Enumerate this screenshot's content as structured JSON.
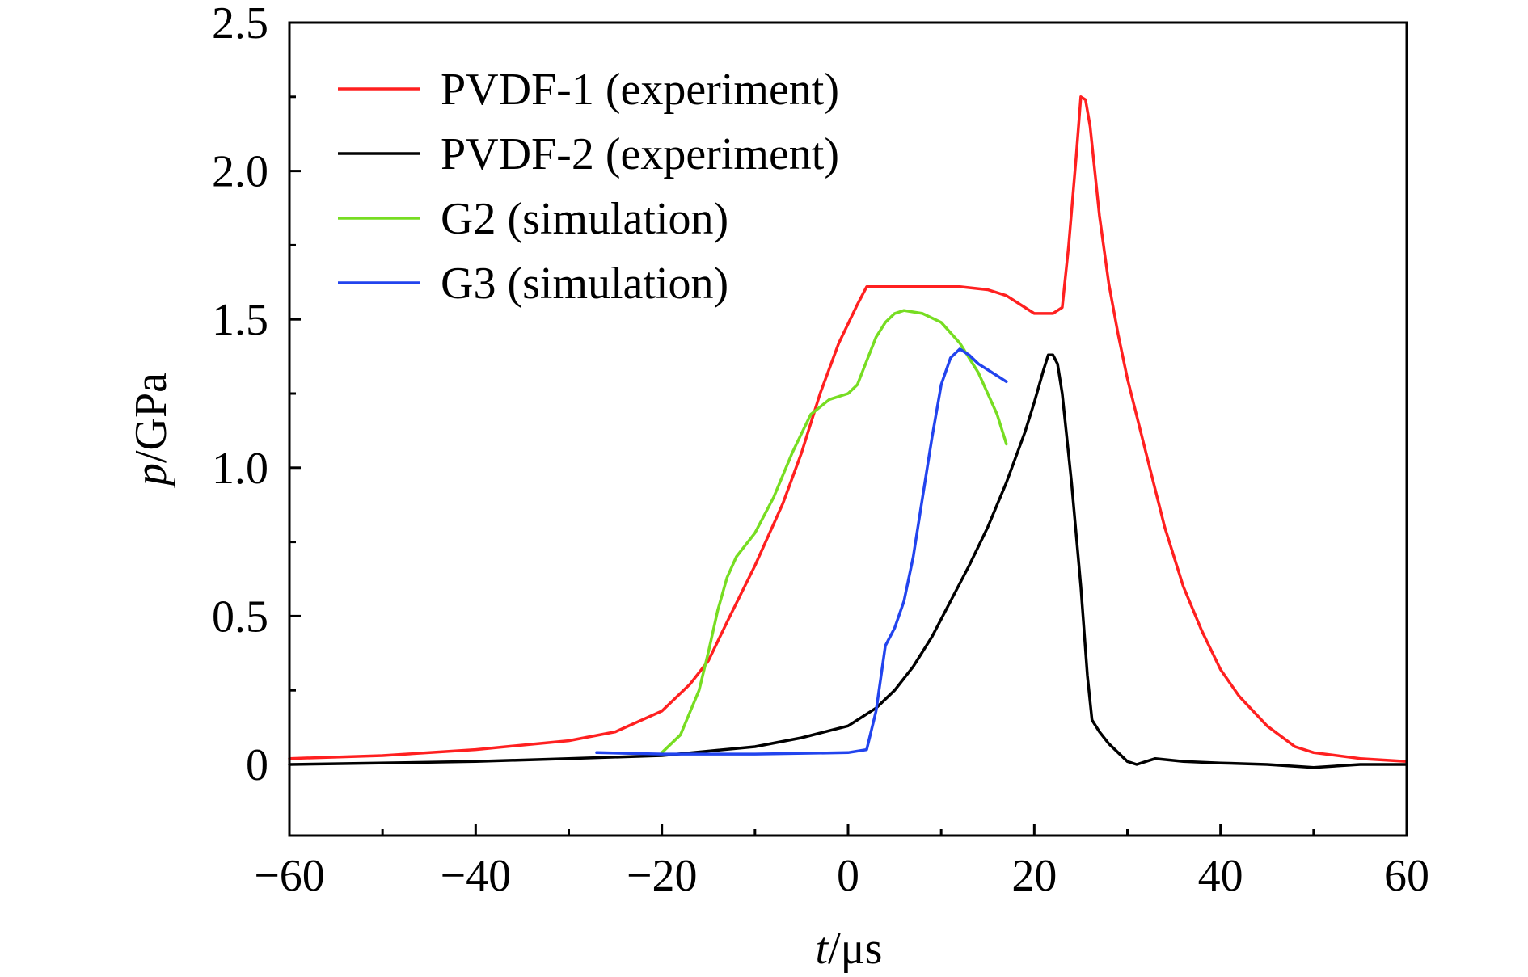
{
  "chart_data": {
    "type": "line",
    "title": "",
    "xlabel": {
      "var": "t",
      "unit": "/μs"
    },
    "ylabel": {
      "var": "p",
      "unit": "/GPa"
    },
    "xlim": [
      -60,
      60
    ],
    "ylim": [
      -0.25,
      2.5
    ],
    "xticks": [
      -60,
      -40,
      -20,
      0,
      20,
      40,
      60
    ],
    "xtick_labels": [
      "−60",
      "−40",
      "−20",
      "0",
      "20",
      "40",
      "60"
    ],
    "yticks": [
      0,
      0.5,
      1.0,
      1.5,
      2.0,
      2.5
    ],
    "ytick_labels": [
      "0",
      "0.5",
      "1.0",
      "1.5",
      "2.0",
      "2.5"
    ],
    "grid": false,
    "legend_position": "top-left",
    "series": [
      {
        "name": "PVDF-1 (experiment)",
        "color": "#ff2020",
        "points": [
          [
            -60,
            0.02
          ],
          [
            -50,
            0.03
          ],
          [
            -40,
            0.05
          ],
          [
            -30,
            0.08
          ],
          [
            -25,
            0.11
          ],
          [
            -20,
            0.18
          ],
          [
            -17,
            0.27
          ],
          [
            -15,
            0.35
          ],
          [
            -13,
            0.48
          ],
          [
            -10,
            0.67
          ],
          [
            -7,
            0.88
          ],
          [
            -5,
            1.05
          ],
          [
            -3,
            1.25
          ],
          [
            -1,
            1.42
          ],
          [
            1,
            1.55
          ],
          [
            2,
            1.61
          ],
          [
            5,
            1.61
          ],
          [
            10,
            1.61
          ],
          [
            12,
            1.61
          ],
          [
            15,
            1.6
          ],
          [
            17,
            1.58
          ],
          [
            19,
            1.54
          ],
          [
            20,
            1.52
          ],
          [
            22,
            1.52
          ],
          [
            23,
            1.54
          ],
          [
            23.7,
            1.75
          ],
          [
            24.5,
            2.05
          ],
          [
            25,
            2.25
          ],
          [
            25.5,
            2.24
          ],
          [
            26,
            2.15
          ],
          [
            27,
            1.85
          ],
          [
            28,
            1.62
          ],
          [
            29,
            1.45
          ],
          [
            30,
            1.3
          ],
          [
            32,
            1.05
          ],
          [
            34,
            0.8
          ],
          [
            36,
            0.6
          ],
          [
            38,
            0.45
          ],
          [
            40,
            0.32
          ],
          [
            42,
            0.23
          ],
          [
            45,
            0.13
          ],
          [
            48,
            0.06
          ],
          [
            50,
            0.04
          ],
          [
            55,
            0.02
          ],
          [
            60,
            0.01
          ]
        ]
      },
      {
        "name": "PVDF-2 (experiment)",
        "color": "#000000",
        "points": [
          [
            -60,
            0.0
          ],
          [
            -40,
            0.01
          ],
          [
            -30,
            0.02
          ],
          [
            -20,
            0.03
          ],
          [
            -10,
            0.06
          ],
          [
            -5,
            0.09
          ],
          [
            0,
            0.13
          ],
          [
            3,
            0.19
          ],
          [
            5,
            0.25
          ],
          [
            7,
            0.33
          ],
          [
            9,
            0.43
          ],
          [
            11,
            0.55
          ],
          [
            13,
            0.67
          ],
          [
            15,
            0.8
          ],
          [
            17,
            0.95
          ],
          [
            19,
            1.12
          ],
          [
            20,
            1.22
          ],
          [
            21,
            1.33
          ],
          [
            21.5,
            1.38
          ],
          [
            22,
            1.38
          ],
          [
            22.5,
            1.35
          ],
          [
            23,
            1.25
          ],
          [
            24,
            0.95
          ],
          [
            25,
            0.6
          ],
          [
            25.7,
            0.3
          ],
          [
            26.2,
            0.15
          ],
          [
            27,
            0.11
          ],
          [
            28,
            0.07
          ],
          [
            29,
            0.04
          ],
          [
            30,
            0.01
          ],
          [
            31,
            0.0
          ],
          [
            32,
            0.01
          ],
          [
            33,
            0.02
          ],
          [
            36,
            0.01
          ],
          [
            40,
            0.005
          ],
          [
            45,
            0.0
          ],
          [
            50,
            -0.01
          ],
          [
            55,
            0.0
          ],
          [
            60,
            0.0
          ]
        ]
      },
      {
        "name": "G2 (simulation)",
        "color": "#77dd22",
        "points": [
          [
            -20,
            0.04
          ],
          [
            -18,
            0.1
          ],
          [
            -16,
            0.25
          ],
          [
            -15,
            0.38
          ],
          [
            -14,
            0.52
          ],
          [
            -13,
            0.63
          ],
          [
            -12,
            0.7
          ],
          [
            -10,
            0.78
          ],
          [
            -8,
            0.9
          ],
          [
            -6,
            1.05
          ],
          [
            -4,
            1.18
          ],
          [
            -2,
            1.23
          ],
          [
            0,
            1.25
          ],
          [
            1,
            1.28
          ],
          [
            2,
            1.36
          ],
          [
            3,
            1.44
          ],
          [
            4,
            1.49
          ],
          [
            5,
            1.52
          ],
          [
            6,
            1.53
          ],
          [
            8,
            1.52
          ],
          [
            10,
            1.49
          ],
          [
            12,
            1.42
          ],
          [
            14,
            1.32
          ],
          [
            16,
            1.18
          ],
          [
            17,
            1.08
          ]
        ]
      },
      {
        "name": "G3 (simulation)",
        "color": "#2244ee",
        "points": [
          [
            -27,
            0.04
          ],
          [
            -20,
            0.035
          ],
          [
            -10,
            0.035
          ],
          [
            0,
            0.04
          ],
          [
            2,
            0.05
          ],
          [
            3,
            0.18
          ],
          [
            4,
            0.4
          ],
          [
            5,
            0.46
          ],
          [
            6,
            0.55
          ],
          [
            7,
            0.7
          ],
          [
            8,
            0.9
          ],
          [
            9,
            1.1
          ],
          [
            10,
            1.28
          ],
          [
            11,
            1.37
          ],
          [
            12,
            1.4
          ],
          [
            13,
            1.38
          ],
          [
            14,
            1.35
          ],
          [
            15,
            1.33
          ],
          [
            16,
            1.31
          ],
          [
            17,
            1.29
          ]
        ]
      }
    ]
  }
}
